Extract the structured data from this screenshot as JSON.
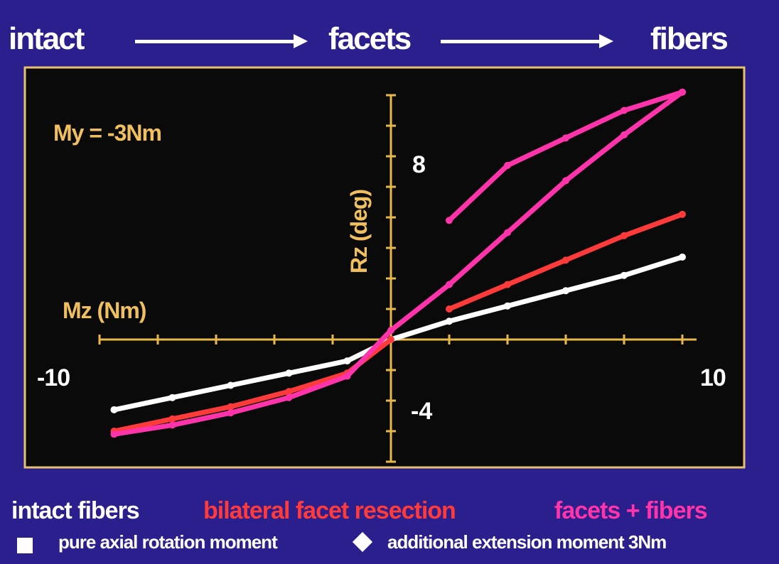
{
  "header": {
    "left": "intact",
    "middle": "facets",
    "right": "fibers"
  },
  "legend": {
    "intact": "intact fibers",
    "facet": "bilateral facet resection",
    "fibers": "facets + fibers",
    "square_label": "pure axial rotation moment",
    "diamond_label": "additional extension moment 3Nm"
  },
  "chart_data": {
    "type": "line",
    "annotation": "My = -3Nm",
    "xlabel": "Mz (Nm)",
    "ylabel": "Rz (deg)",
    "xlim": [
      -10,
      10
    ],
    "ylim": [
      -4,
      8
    ],
    "x_tick_labels": [
      "-10",
      "10"
    ],
    "y_tick_labels": [
      "8",
      "-4"
    ],
    "colors": {
      "background": "#2a1f8c",
      "plot_bg": "#0a0a0a",
      "axis": "#e8b84a",
      "text": "#f0c060",
      "intact": "#ffffff",
      "facet": "#ff3a3a",
      "fibers": "#ff33aa"
    },
    "series": [
      {
        "name": "intact fibers",
        "color": "#ffffff",
        "x": [
          -9.5,
          -7.5,
          -5.5,
          -3.5,
          -1.5,
          0
        ],
        "y": [
          -2.3,
          -1.9,
          -1.5,
          -1.1,
          -0.7,
          0
        ]
      },
      {
        "name": "intact fibers",
        "color": "#ffffff",
        "x": [
          0,
          2,
          4,
          6,
          8,
          10
        ],
        "y": [
          0,
          0.6,
          1.1,
          1.6,
          2.1,
          2.7
        ]
      },
      {
        "name": "bilateral facet resection",
        "color": "#ff3a3a",
        "x": [
          -9.5,
          -7.5,
          -5.5,
          -3.5,
          -1.5,
          0
        ],
        "y": [
          -3.0,
          -2.6,
          -2.2,
          -1.7,
          -1.1,
          0
        ]
      },
      {
        "name": "bilateral facet resection",
        "color": "#ff3a3a",
        "x": [
          2,
          4,
          6,
          8,
          10
        ],
        "y": [
          1.0,
          1.8,
          2.6,
          3.4,
          4.1
        ]
      },
      {
        "name": "facets + fibers",
        "color": "#ff33aa",
        "x": [
          -9.5,
          -7.5,
          -5.5,
          -3.5,
          -1.5,
          0,
          2,
          4,
          6,
          8,
          10
        ],
        "y": [
          -3.1,
          -2.8,
          -2.4,
          -1.9,
          -1.2,
          0.3,
          1.8,
          3.5,
          5.2,
          6.7,
          8.1
        ]
      },
      {
        "name": "facets + fibers",
        "color": "#ff33aa",
        "x": [
          2,
          4,
          6,
          8,
          10
        ],
        "y": [
          3.9,
          5.7,
          6.6,
          7.5,
          8.1
        ]
      }
    ]
  }
}
